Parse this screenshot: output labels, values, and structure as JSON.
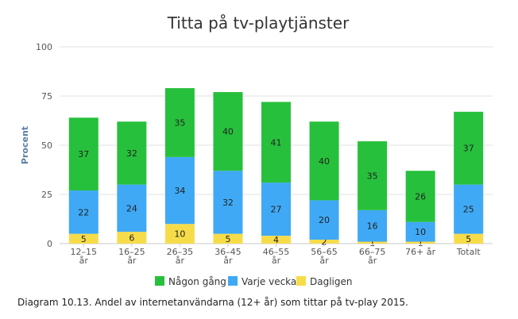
{
  "chart_data": {
    "type": "bar",
    "stacked": true,
    "title": "Titta på tv-playtjänster",
    "ylabel": "Procent",
    "xlabel": "",
    "ylim": [
      0,
      100
    ],
    "yticks": [
      0,
      25,
      50,
      75,
      100
    ],
    "grid": true,
    "legend_position": "bottom",
    "categories": [
      [
        "12–15",
        "år"
      ],
      [
        "16–25",
        "år"
      ],
      [
        "26–35",
        "år"
      ],
      [
        "36–45",
        "år"
      ],
      [
        "46–55",
        "år"
      ],
      [
        "56–65",
        "år"
      ],
      [
        "66–75",
        "år"
      ],
      [
        "76+ år"
      ],
      [
        "Totalt"
      ]
    ],
    "series": [
      {
        "name": "Dagligen",
        "color": "#f7dc4a",
        "values": [
          5,
          6,
          10,
          5,
          4,
          2,
          1,
          1,
          5
        ]
      },
      {
        "name": "Varje vecka",
        "color": "#3fa9f5",
        "values": [
          22,
          24,
          34,
          32,
          27,
          20,
          16,
          10,
          25
        ]
      },
      {
        "name": "Någon gång",
        "color": "#27c03c",
        "values": [
          37,
          32,
          35,
          40,
          41,
          40,
          35,
          26,
          37
        ]
      }
    ],
    "legend_order": [
      "Någon gång",
      "Varje vecka",
      "Dagligen"
    ]
  },
  "caption": "Diagram 10.13. Andel av internetanvändarna (12+ år) som tittar på tv-play 2015."
}
